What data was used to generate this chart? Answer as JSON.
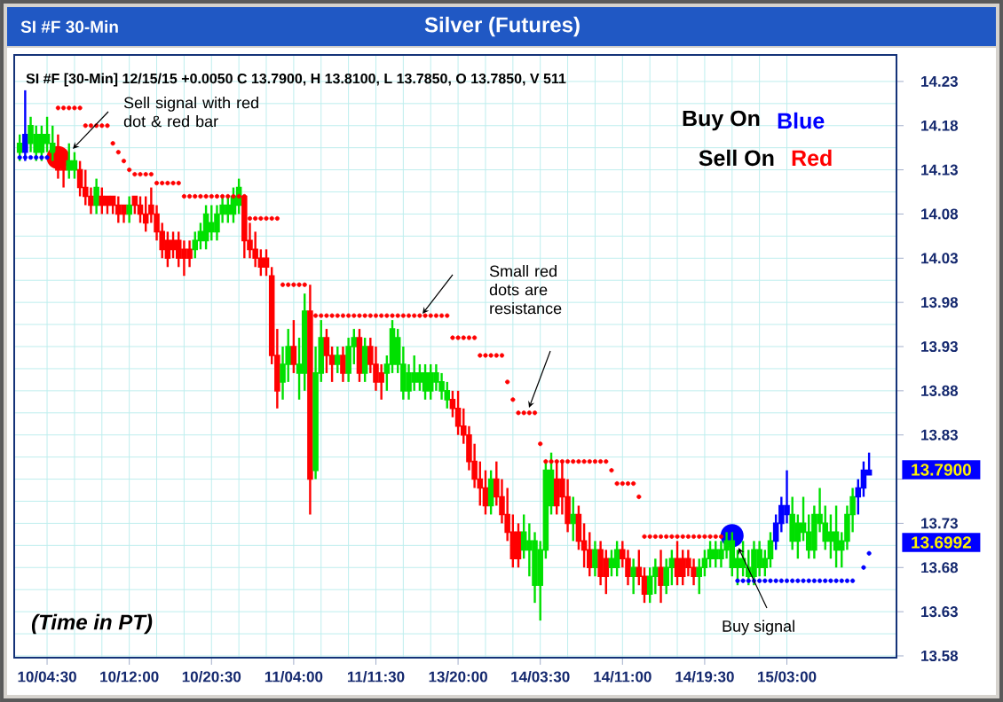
{
  "chart_data": {
    "type": "candlestick",
    "title": "Silver (Futures)",
    "subtitle": "SI #F 30-Min",
    "categories": [
      null,
      null,
      null,
      null,
      null,
      "10/04:30",
      null,
      null,
      null,
      null,
      null,
      null,
      null,
      null,
      null,
      null,
      null,
      null,
      null,
      null,
      "10/12:00",
      null,
      null,
      null,
      null,
      null,
      null,
      null,
      null,
      null,
      null,
      null,
      null,
      null,
      null,
      "10/20:30",
      null,
      null,
      null,
      null,
      null,
      null,
      null,
      null,
      null,
      null,
      null,
      null,
      null,
      null,
      "11/04:00",
      null,
      null,
      null,
      null,
      null,
      null,
      null,
      null,
      null,
      null,
      null,
      null,
      null,
      null,
      "11/11:30",
      null,
      null,
      null,
      null,
      null,
      null,
      null,
      null,
      null,
      null,
      null,
      null,
      null,
      null,
      "13/20:00",
      null,
      null,
      null,
      null,
      null,
      null,
      null,
      null,
      null,
      null,
      null,
      null,
      null,
      null,
      "14/03:30",
      null,
      null,
      null,
      null,
      null,
      null,
      null,
      null,
      null,
      null,
      null,
      null,
      null,
      null,
      "14/11:00",
      null,
      null,
      null,
      null,
      null,
      null,
      null,
      null,
      null,
      null,
      null,
      null,
      null,
      null,
      "14/19:30",
      null,
      null,
      null,
      null,
      null,
      null,
      null,
      null,
      null,
      null,
      null,
      null,
      null,
      null,
      "15/03:00",
      null,
      null,
      null,
      null,
      null,
      null,
      null,
      null,
      null,
      null,
      null,
      null,
      null,
      null,
      null
    ],
    "ohlc": [
      [
        14.15,
        14.17,
        14.14,
        14.16
      ],
      [
        14.15,
        14.22,
        14.14,
        14.17
      ],
      [
        14.16,
        14.19,
        14.15,
        14.18
      ],
      [
        14.15,
        14.18,
        14.14,
        14.17
      ],
      [
        14.15,
        14.18,
        14.14,
        14.17
      ],
      [
        14.16,
        14.19,
        14.15,
        14.17
      ],
      [
        14.15,
        14.18,
        14.14,
        14.16
      ],
      [
        14.15,
        14.17,
        14.12,
        14.13
      ],
      [
        14.14,
        14.15,
        14.11,
        14.13
      ],
      [
        14.13,
        14.16,
        14.12,
        14.14
      ],
      [
        14.13,
        14.15,
        14.12,
        14.14
      ],
      [
        14.13,
        14.14,
        14.1,
        14.11
      ],
      [
        14.11,
        14.13,
        14.09,
        14.1
      ],
      [
        14.1,
        14.11,
        14.08,
        14.09
      ],
      [
        14.09,
        14.12,
        14.08,
        14.11
      ],
      [
        14.1,
        14.11,
        14.08,
        14.09
      ],
      [
        14.1,
        14.1,
        14.08,
        14.09
      ],
      [
        14.1,
        14.1,
        14.08,
        14.09
      ],
      [
        14.09,
        14.1,
        14.07,
        14.08
      ],
      [
        14.09,
        14.09,
        14.07,
        14.08
      ],
      [
        14.08,
        14.1,
        14.07,
        14.09
      ],
      [
        14.1,
        14.1,
        14.08,
        14.09
      ],
      [
        14.09,
        14.1,
        14.07,
        14.08
      ],
      [
        14.08,
        14.1,
        14.06,
        14.07
      ],
      [
        14.09,
        14.11,
        14.07,
        14.08
      ],
      [
        14.08,
        14.09,
        14.05,
        14.06
      ],
      [
        14.06,
        14.07,
        14.03,
        14.04
      ],
      [
        14.05,
        14.06,
        14.02,
        14.03
      ],
      [
        14.05,
        14.06,
        14.03,
        14.04
      ],
      [
        14.05,
        14.06,
        14.02,
        14.03
      ],
      [
        14.04,
        14.05,
        14.01,
        14.03
      ],
      [
        14.04,
        14.05,
        14.02,
        14.03
      ],
      [
        14.04,
        14.06,
        14.03,
        14.05
      ],
      [
        14.05,
        14.07,
        14.04,
        14.06
      ],
      [
        14.05,
        14.09,
        14.04,
        14.08
      ],
      [
        14.06,
        14.09,
        14.05,
        14.07
      ],
      [
        14.06,
        14.09,
        14.05,
        14.08
      ],
      [
        14.08,
        14.1,
        14.07,
        14.09
      ],
      [
        14.08,
        14.1,
        14.07,
        14.09
      ],
      [
        14.08,
        14.11,
        14.07,
        14.1
      ],
      [
        14.09,
        14.12,
        14.08,
        14.11
      ],
      [
        14.1,
        14.1,
        14.03,
        14.05
      ],
      [
        14.05,
        14.07,
        14.03,
        14.04
      ],
      [
        14.04,
        14.06,
        14.02,
        14.03
      ],
      [
        14.03,
        14.04,
        14.01,
        14.02
      ],
      [
        14.03,
        14.04,
        14.01,
        14.02
      ],
      [
        14.01,
        14.02,
        13.91,
        13.92
      ],
      [
        13.92,
        13.95,
        13.86,
        13.88
      ],
      [
        13.89,
        13.93,
        13.87,
        13.91
      ],
      [
        13.91,
        13.95,
        13.89,
        13.93
      ],
      [
        13.93,
        13.96,
        13.9,
        13.91
      ],
      [
        13.9,
        13.94,
        13.87,
        13.91
      ],
      [
        13.9,
        13.99,
        13.88,
        13.97
      ],
      [
        13.97,
        14.0,
        13.74,
        13.78
      ],
      [
        13.79,
        13.93,
        13.78,
        13.9
      ],
      [
        13.9,
        13.96,
        13.89,
        13.94
      ],
      [
        13.94,
        13.95,
        13.9,
        13.92
      ],
      [
        13.92,
        13.93,
        13.89,
        13.91
      ],
      [
        13.91,
        13.93,
        13.9,
        13.92
      ],
      [
        13.92,
        13.93,
        13.89,
        13.9
      ],
      [
        13.9,
        13.94,
        13.89,
        13.93
      ],
      [
        13.93,
        13.95,
        13.91,
        13.94
      ],
      [
        13.94,
        13.95,
        13.89,
        13.9
      ],
      [
        13.9,
        13.94,
        13.89,
        13.93
      ],
      [
        13.93,
        13.94,
        13.9,
        13.91
      ],
      [
        13.91,
        13.93,
        13.88,
        13.89
      ],
      [
        13.9,
        13.91,
        13.87,
        13.89
      ],
      [
        13.9,
        13.92,
        13.88,
        13.91
      ],
      [
        13.91,
        13.96,
        13.9,
        13.95
      ],
      [
        13.91,
        13.95,
        13.9,
        13.94
      ],
      [
        13.88,
        13.93,
        13.87,
        13.91
      ],
      [
        13.88,
        13.91,
        13.87,
        13.9
      ],
      [
        13.89,
        13.92,
        13.88,
        13.9
      ],
      [
        13.89,
        13.91,
        13.88,
        13.9
      ],
      [
        13.88,
        13.91,
        13.87,
        13.9
      ],
      [
        13.88,
        13.91,
        13.87,
        13.9
      ],
      [
        13.89,
        13.91,
        13.88,
        13.9
      ],
      [
        13.88,
        13.9,
        13.87,
        13.89
      ],
      [
        13.87,
        13.89,
        13.86,
        13.88
      ],
      [
        13.87,
        13.88,
        13.85,
        13.86
      ],
      [
        13.86,
        13.88,
        13.83,
        13.84
      ],
      [
        13.84,
        13.86,
        13.82,
        13.83
      ],
      [
        13.83,
        13.84,
        13.79,
        13.8
      ],
      [
        13.8,
        13.82,
        13.77,
        13.78
      ],
      [
        13.78,
        13.8,
        13.75,
        13.77
      ],
      [
        13.77,
        13.79,
        13.74,
        13.75
      ],
      [
        13.75,
        13.79,
        13.74,
        13.78
      ],
      [
        13.78,
        13.8,
        13.75,
        13.76
      ],
      [
        13.76,
        13.78,
        13.73,
        13.74
      ],
      [
        13.74,
        13.77,
        13.71,
        13.72
      ],
      [
        13.72,
        13.74,
        13.68,
        13.69
      ],
      [
        13.72,
        13.73,
        13.68,
        13.69
      ],
      [
        13.7,
        13.74,
        13.69,
        13.72
      ],
      [
        13.7,
        13.73,
        13.67,
        13.71
      ],
      [
        13.66,
        13.72,
        13.64,
        13.71
      ],
      [
        13.66,
        13.71,
        13.62,
        13.7
      ],
      [
        13.7,
        13.8,
        13.69,
        13.79
      ],
      [
        13.75,
        13.81,
        13.74,
        13.79
      ],
      [
        13.78,
        13.8,
        13.74,
        13.75
      ],
      [
        13.78,
        13.8,
        13.74,
        13.76
      ],
      [
        13.76,
        13.78,
        13.72,
        13.73
      ],
      [
        13.73,
        13.76,
        13.71,
        13.74
      ],
      [
        13.74,
        13.75,
        13.7,
        13.71
      ],
      [
        13.71,
        13.73,
        13.68,
        13.7
      ],
      [
        13.7,
        13.72,
        13.67,
        13.68
      ],
      [
        13.68,
        13.71,
        13.67,
        13.7
      ],
      [
        13.7,
        13.71,
        13.66,
        13.67
      ],
      [
        13.69,
        13.7,
        13.65,
        13.67
      ],
      [
        13.68,
        13.7,
        13.67,
        13.69
      ],
      [
        13.68,
        13.71,
        13.67,
        13.7
      ],
      [
        13.7,
        13.71,
        13.68,
        13.69
      ],
      [
        13.69,
        13.7,
        13.66,
        13.67
      ],
      [
        13.67,
        13.69,
        13.65,
        13.68
      ],
      [
        13.68,
        13.7,
        13.66,
        13.67
      ],
      [
        13.67,
        13.68,
        13.64,
        13.65
      ],
      [
        13.65,
        13.68,
        13.64,
        13.67
      ],
      [
        13.67,
        13.69,
        13.65,
        13.68
      ],
      [
        13.68,
        13.7,
        13.64,
        13.66
      ],
      [
        13.66,
        13.69,
        13.65,
        13.68
      ],
      [
        13.68,
        13.7,
        13.66,
        13.69
      ],
      [
        13.69,
        13.71,
        13.66,
        13.67
      ],
      [
        13.69,
        13.7,
        13.66,
        13.67
      ],
      [
        13.69,
        13.7,
        13.67,
        13.68
      ],
      [
        13.68,
        13.69,
        13.66,
        13.67
      ],
      [
        13.67,
        13.69,
        13.65,
        13.68
      ],
      [
        13.68,
        13.7,
        13.67,
        13.69
      ],
      [
        13.69,
        13.71,
        13.68,
        13.7
      ],
      [
        13.69,
        13.71,
        13.68,
        13.7
      ],
      [
        13.69,
        13.71,
        13.68,
        13.7
      ],
      [
        13.7,
        13.72,
        13.69,
        13.71
      ],
      [
        13.68,
        13.72,
        13.67,
        13.71
      ],
      [
        13.68,
        13.7,
        13.66,
        13.69
      ],
      [
        13.68,
        13.71,
        13.67,
        13.69
      ],
      [
        13.67,
        13.7,
        13.66,
        13.68
      ],
      [
        13.67,
        13.71,
        13.66,
        13.7
      ],
      [
        13.68,
        13.71,
        13.67,
        13.7
      ],
      [
        13.68,
        13.7,
        13.67,
        13.69
      ],
      [
        13.69,
        13.72,
        13.68,
        13.71
      ],
      [
        13.71,
        13.74,
        13.7,
        13.73
      ],
      [
        13.73,
        13.76,
        13.72,
        13.75
      ],
      [
        13.74,
        13.79,
        13.73,
        13.75
      ],
      [
        13.71,
        13.76,
        13.7,
        13.74
      ],
      [
        13.71,
        13.74,
        13.69,
        13.73
      ],
      [
        13.72,
        13.76,
        13.71,
        13.73
      ],
      [
        13.7,
        13.74,
        13.69,
        13.72
      ],
      [
        13.7,
        13.75,
        13.69,
        13.74
      ],
      [
        13.73,
        13.77,
        13.72,
        13.74
      ],
      [
        13.71,
        13.75,
        13.7,
        13.73
      ],
      [
        13.71,
        13.74,
        13.69,
        13.72
      ],
      [
        13.7,
        13.75,
        13.68,
        13.72
      ],
      [
        13.7,
        13.72,
        13.68,
        13.71
      ],
      [
        13.71,
        13.75,
        13.7,
        13.74
      ],
      [
        13.74,
        13.77,
        13.72,
        13.76
      ],
      [
        13.76,
        13.78,
        13.74,
        13.77
      ],
      [
        13.77,
        13.8,
        13.76,
        13.79
      ],
      [
        13.785,
        13.81,
        13.785,
        13.79
      ]
    ],
    "colors": [
      "#00e000",
      "#0000ff",
      "#00e000",
      "#00e000",
      "#00e000",
      "#00e000",
      "#00e000",
      "#ff0000",
      "#ff0000",
      "#00e000",
      "#00e000",
      "#ff0000",
      "#ff0000",
      "#ff0000",
      "#00e000",
      "#ff0000",
      "#ff0000",
      "#ff0000",
      "#ff0000",
      "#ff0000",
      "#00e000",
      "#ff0000",
      "#ff0000",
      "#ff0000",
      "#ff0000",
      "#ff0000",
      "#ff0000",
      "#ff0000",
      "#ff0000",
      "#ff0000",
      "#ff0000",
      "#ff0000",
      "#00e000",
      "#00e000",
      "#00e000",
      "#00e000",
      "#00e000",
      "#00e000",
      "#00e000",
      "#00e000",
      "#00e000",
      "#ff0000",
      "#ff0000",
      "#ff0000",
      "#ff0000",
      "#ff0000",
      "#ff0000",
      "#ff0000",
      "#00e000",
      "#00e000",
      "#ff0000",
      "#00e000",
      "#00e000",
      "#ff0000",
      "#00e000",
      "#00e000",
      "#ff0000",
      "#ff0000",
      "#00e000",
      "#ff0000",
      "#00e000",
      "#00e000",
      "#ff0000",
      "#00e000",
      "#ff0000",
      "#ff0000",
      "#ff0000",
      "#00e000",
      "#00e000",
      "#00e000",
      "#00e000",
      "#00e000",
      "#00e000",
      "#00e000",
      "#00e000",
      "#00e000",
      "#00e000",
      "#00e000",
      "#00e000",
      "#ff0000",
      "#ff0000",
      "#ff0000",
      "#ff0000",
      "#ff0000",
      "#ff0000",
      "#ff0000",
      "#00e000",
      "#ff0000",
      "#ff0000",
      "#ff0000",
      "#ff0000",
      "#ff0000",
      "#00e000",
      "#00e000",
      "#00e000",
      "#00e000",
      "#00e000",
      "#00e000",
      "#ff0000",
      "#ff0000",
      "#ff0000",
      "#00e000",
      "#ff0000",
      "#ff0000",
      "#ff0000",
      "#00e000",
      "#ff0000",
      "#ff0000",
      "#00e000",
      "#00e000",
      "#ff0000",
      "#ff0000",
      "#00e000",
      "#ff0000",
      "#ff0000",
      "#00e000",
      "#00e000",
      "#ff0000",
      "#00e000",
      "#00e000",
      "#ff0000",
      "#ff0000",
      "#ff0000",
      "#ff0000",
      "#00e000",
      "#00e000",
      "#00e000",
      "#00e000",
      "#00e000",
      "#00e000",
      "#00e000",
      "#00e000",
      "#00e000",
      "#00e000",
      "#00e000",
      "#00e000",
      "#00e000",
      "#00e000",
      "#0000ff",
      "#0000ff",
      "#0000ff",
      "#00e000",
      "#00e000",
      "#00e000",
      "#00e000",
      "#00e000",
      "#00e000",
      "#00e000",
      "#00e000",
      "#00e000",
      "#00e000",
      "#00e000",
      "#00e000",
      "#0000ff",
      "#0000ff",
      "#0000ff"
    ],
    "series": [
      {
        "type": "scatter",
        "marker": "circle",
        "color": "#ff0000",
        "values": [
          null,
          null,
          null,
          null,
          null,
          null,
          null,
          14.2,
          14.2,
          14.2,
          14.2,
          14.2,
          14.18,
          14.18,
          14.18,
          14.18,
          14.18,
          14.16,
          14.15,
          14.14,
          14.13,
          14.125,
          14.125,
          14.125,
          14.125,
          14.115,
          14.115,
          14.115,
          14.115,
          14.115,
          14.1,
          14.1,
          14.1,
          14.1,
          14.1,
          14.1,
          14.1,
          14.1,
          14.1,
          14.1,
          14.1,
          14.1,
          14.075,
          14.075,
          14.075,
          14.075,
          14.075,
          14.075,
          14.0,
          14.0,
          14.0,
          14.0,
          14.0,
          null,
          13.965,
          13.965,
          13.965,
          13.965,
          13.965,
          13.965,
          13.965,
          13.965,
          13.965,
          13.965,
          13.965,
          13.965,
          13.965,
          13.965,
          13.965,
          13.965,
          13.965,
          13.965,
          13.965,
          13.965,
          13.965,
          13.965,
          13.965,
          13.965,
          13.965,
          13.94,
          13.94,
          13.94,
          13.94,
          13.94,
          13.92,
          13.92,
          13.92,
          13.92,
          13.92,
          13.89,
          13.87,
          13.855,
          13.855,
          13.855,
          13.855,
          13.82,
          13.8,
          13.8,
          13.8,
          13.8,
          13.8,
          13.8,
          13.8,
          13.8,
          13.8,
          13.8,
          13.8,
          13.8,
          13.79,
          13.775,
          13.775,
          13.775,
          13.775,
          13.76,
          13.715,
          13.715,
          13.715,
          13.715,
          13.715,
          13.715,
          13.715,
          13.715,
          13.715,
          13.715,
          13.715,
          13.715,
          13.715,
          13.715,
          13.715,
          null,
          null,
          null,
          null,
          null,
          null,
          null,
          null,
          null,
          null,
          null,
          null,
          null,
          null,
          null,
          null,
          null,
          null,
          null,
          null,
          null,
          null,
          null,
          null,
          null,
          null,
          null
        ]
      },
      {
        "type": "scatter",
        "marker": "circle",
        "color": "#0000ff",
        "values": [
          14.144,
          14.144,
          14.144,
          14.144,
          14.144,
          14.144,
          null,
          null,
          null,
          null,
          null,
          null,
          null,
          null,
          null,
          null,
          null,
          null,
          null,
          null,
          null,
          null,
          null,
          null,
          null,
          null,
          null,
          null,
          null,
          null,
          null,
          null,
          null,
          null,
          null,
          null,
          null,
          null,
          null,
          null,
          null,
          null,
          null,
          null,
          null,
          null,
          null,
          null,
          null,
          null,
          null,
          null,
          null,
          null,
          null,
          null,
          null,
          null,
          null,
          null,
          null,
          null,
          null,
          null,
          null,
          null,
          null,
          null,
          null,
          null,
          null,
          null,
          null,
          null,
          null,
          null,
          null,
          null,
          null,
          null,
          null,
          null,
          null,
          null,
          null,
          null,
          null,
          null,
          null,
          null,
          null,
          null,
          null,
          null,
          null,
          null,
          null,
          null,
          null,
          null,
          null,
          null,
          null,
          null,
          null,
          null,
          null,
          null,
          null,
          null,
          null,
          null,
          null,
          null,
          null,
          null,
          null,
          null,
          null,
          null,
          null,
          null,
          null,
          null,
          null,
          null,
          null,
          null,
          null,
          null,
          null,
          13.665,
          13.665,
          13.665,
          13.665,
          13.665,
          13.665,
          13.665,
          13.665,
          13.665,
          13.665,
          13.665,
          13.665,
          13.665,
          13.665,
          13.665,
          13.665,
          13.665,
          13.665,
          13.665,
          13.665,
          13.665,
          13.665,
          null,
          13.68,
          13.696
        ]
      },
      {
        "type": "bubble",
        "marker": "circle",
        "color": "#ff0000",
        "values": [
          null,
          null,
          null,
          null,
          null,
          null,
          null,
          14.144,
          null,
          null,
          null,
          null,
          null,
          null,
          null,
          null,
          null,
          null,
          null,
          null,
          null,
          null,
          null,
          null,
          null,
          null,
          null,
          null,
          null,
          null,
          null,
          null,
          null,
          null,
          null,
          null,
          null,
          null,
          null,
          null,
          null,
          null,
          null,
          null,
          null,
          null,
          null,
          null,
          null,
          null,
          null,
          null,
          null,
          null,
          null,
          null,
          null,
          null,
          null,
          null,
          null,
          null,
          null,
          null,
          null,
          null,
          null,
          null,
          null,
          null,
          null,
          null,
          null,
          null,
          null,
          null,
          null,
          null,
          null,
          null,
          null,
          null,
          null,
          null,
          null,
          null,
          null,
          null,
          null,
          null,
          null,
          null,
          null,
          null,
          null,
          null,
          null,
          null,
          null,
          null,
          null,
          null,
          null,
          null,
          null,
          null,
          null,
          null,
          null,
          null,
          null,
          null,
          null,
          null,
          null,
          null,
          null,
          null,
          null,
          null,
          null,
          null,
          null,
          null,
          null,
          null,
          null,
          null,
          null,
          null,
          null,
          null,
          null,
          null,
          null,
          null,
          null,
          null,
          null,
          null,
          null,
          null,
          null,
          null,
          null,
          null,
          null,
          null,
          null,
          null,
          null,
          null,
          null,
          null,
          null,
          null
        ],
        "sizes": [
          null,
          null,
          null,
          null,
          null,
          null,
          null,
          1,
          null,
          null,
          null,
          null,
          null,
          null,
          null,
          null,
          null,
          null,
          null,
          null,
          null,
          null,
          null,
          null,
          null,
          null,
          null,
          null,
          null,
          null,
          null,
          null,
          null,
          null,
          null,
          null,
          null,
          null,
          null,
          null,
          null,
          null,
          null,
          null,
          null,
          null,
          null,
          null,
          null,
          null,
          null,
          null,
          null,
          null,
          null,
          null,
          null,
          null,
          null,
          null,
          null,
          null,
          null,
          null,
          null,
          null,
          null,
          null,
          null,
          null,
          null,
          null,
          null,
          null,
          null,
          null,
          null,
          null,
          null,
          null,
          null,
          null,
          null,
          null,
          null,
          null,
          null,
          null,
          null,
          null,
          null,
          null,
          null,
          null,
          null,
          null,
          null,
          null,
          null,
          null,
          null,
          null,
          null,
          null,
          null,
          null,
          null,
          null,
          null,
          null,
          null,
          null,
          null,
          null,
          null,
          null,
          null,
          null,
          null,
          null,
          null,
          null,
          null,
          null,
          null,
          null,
          null,
          null,
          null,
          null,
          null,
          null,
          null,
          null,
          null,
          null,
          null,
          null,
          null,
          null,
          null,
          null,
          null,
          null,
          null,
          null,
          null,
          null,
          null,
          null,
          null,
          null,
          null,
          null,
          null,
          null
        ]
      },
      {
        "type": "bubble",
        "marker": "circle",
        "color": "#0000ff",
        "values": [
          null,
          null,
          null,
          null,
          null,
          null,
          null,
          null,
          null,
          null,
          null,
          null,
          null,
          null,
          null,
          null,
          null,
          null,
          null,
          null,
          null,
          null,
          null,
          null,
          null,
          null,
          null,
          null,
          null,
          null,
          null,
          null,
          null,
          null,
          null,
          null,
          null,
          null,
          null,
          null,
          null,
          null,
          null,
          null,
          null,
          null,
          null,
          null,
          null,
          null,
          null,
          null,
          null,
          null,
          null,
          null,
          null,
          null,
          null,
          null,
          null,
          null,
          null,
          null,
          null,
          null,
          null,
          null,
          null,
          null,
          null,
          null,
          null,
          null,
          null,
          null,
          null,
          null,
          null,
          null,
          null,
          null,
          null,
          null,
          null,
          null,
          null,
          null,
          null,
          null,
          null,
          null,
          null,
          null,
          null,
          null,
          null,
          null,
          null,
          null,
          null,
          null,
          null,
          null,
          null,
          null,
          null,
          null,
          null,
          null,
          null,
          null,
          null,
          null,
          null,
          null,
          null,
          null,
          null,
          null,
          null,
          null,
          null,
          null,
          null,
          null,
          null,
          null,
          null,
          null,
          13.716,
          null,
          null,
          null,
          null,
          null,
          null,
          null,
          null,
          null,
          null,
          null,
          null,
          null,
          null,
          null,
          null,
          null,
          null,
          null,
          null,
          null,
          null,
          null,
          null,
          null
        ],
        "sizes": [
          null,
          null,
          null,
          null,
          null,
          null,
          null,
          null,
          null,
          null,
          null,
          null,
          null,
          null,
          null,
          null,
          null,
          null,
          null,
          null,
          null,
          null,
          null,
          null,
          null,
          null,
          null,
          null,
          null,
          null,
          null,
          null,
          null,
          null,
          null,
          null,
          null,
          null,
          null,
          null,
          null,
          null,
          null,
          null,
          null,
          null,
          null,
          null,
          null,
          null,
          null,
          null,
          null,
          null,
          null,
          null,
          null,
          null,
          null,
          null,
          null,
          null,
          null,
          null,
          null,
          null,
          null,
          null,
          null,
          null,
          null,
          null,
          null,
          null,
          null,
          null,
          null,
          null,
          null,
          null,
          null,
          null,
          null,
          null,
          null,
          null,
          null,
          null,
          null,
          null,
          null,
          null,
          null,
          null,
          null,
          null,
          null,
          null,
          null,
          null,
          null,
          null,
          null,
          null,
          null,
          null,
          null,
          null,
          null,
          null,
          null,
          null,
          null,
          null,
          null,
          null,
          null,
          null,
          null,
          null,
          null,
          null,
          null,
          null,
          null,
          null,
          null,
          null,
          null,
          null,
          1,
          null,
          null,
          null,
          null,
          null,
          null,
          null,
          null,
          null,
          null,
          null,
          null,
          null,
          null,
          null,
          null,
          null,
          null,
          null,
          null,
          null,
          null,
          null,
          null,
          null
        ]
      }
    ],
    "ylim": [
      13.578,
      14.26
    ],
    "yticks": [
      13.58,
      13.63,
      13.68,
      13.73,
      {
        "value": 13.78,
        "label": null
      },
      13.83,
      13.88,
      13.93,
      13.98,
      14.03,
      14.08,
      14.13,
      14.18,
      14.23
    ],
    "grid": true,
    "annotations": [
      "SI #F [30-Min] 12/15/15 +0.0050 C 13.7900, H 13.8100, L 13.7850, O 13.7850, V 511",
      "Buy On",
      "Blue",
      "Sell On",
      "Red",
      "Sell signal with red dot & red bar",
      "Small red dots are resistance",
      "Buy signal",
      "(Time in PT)",
      "13.7900",
      "13.6992"
    ]
  }
}
